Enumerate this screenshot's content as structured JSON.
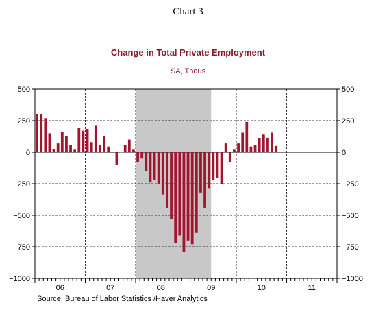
{
  "chart_label": "Chart 3",
  "source_note": "Source:  Bureau of Labor Statistics /Haver Analytics",
  "colors": {
    "bar": "#a3152f",
    "recession": "#c8c8c8",
    "title": "#8b1a2b"
  },
  "chart_data": {
    "type": "bar",
    "title": "Change in Total Private Employment",
    "subtitle": "SA, Thous",
    "xlabel": "",
    "ylabel": "",
    "ylim": [
      -1000,
      500
    ],
    "yticks": [
      500,
      250,
      0,
      -250,
      -500,
      -750,
      -1000
    ],
    "ytick_labels": [
      "500",
      "250",
      "0",
      "−250",
      "−500",
      "−750",
      "−1000"
    ],
    "x_start": "2006-01",
    "x_end": "2011-12",
    "year_labels": [
      "06",
      "07",
      "08",
      "09",
      "10",
      "11"
    ],
    "recession": {
      "start": "2008-01",
      "end": "2009-06"
    },
    "gridlines": "dashed",
    "legend": "none",
    "series": [
      {
        "values": [
          300,
          300,
          270,
          150,
          25,
          70,
          160,
          125,
          55,
          20,
          190,
          170,
          185,
          80,
          210,
          60,
          125,
          45,
          5,
          -100,
          0,
          60,
          100,
          20,
          -80,
          -50,
          -150,
          -240,
          -220,
          -250,
          -335,
          -440,
          -530,
          -720,
          -660,
          -790,
          -700,
          -730,
          -640,
          -320,
          -440,
          -285,
          -220,
          -205,
          -250,
          70,
          -80,
          20,
          70,
          155,
          240,
          45,
          55,
          110,
          140,
          115,
          155,
          50
        ]
      }
    ]
  }
}
